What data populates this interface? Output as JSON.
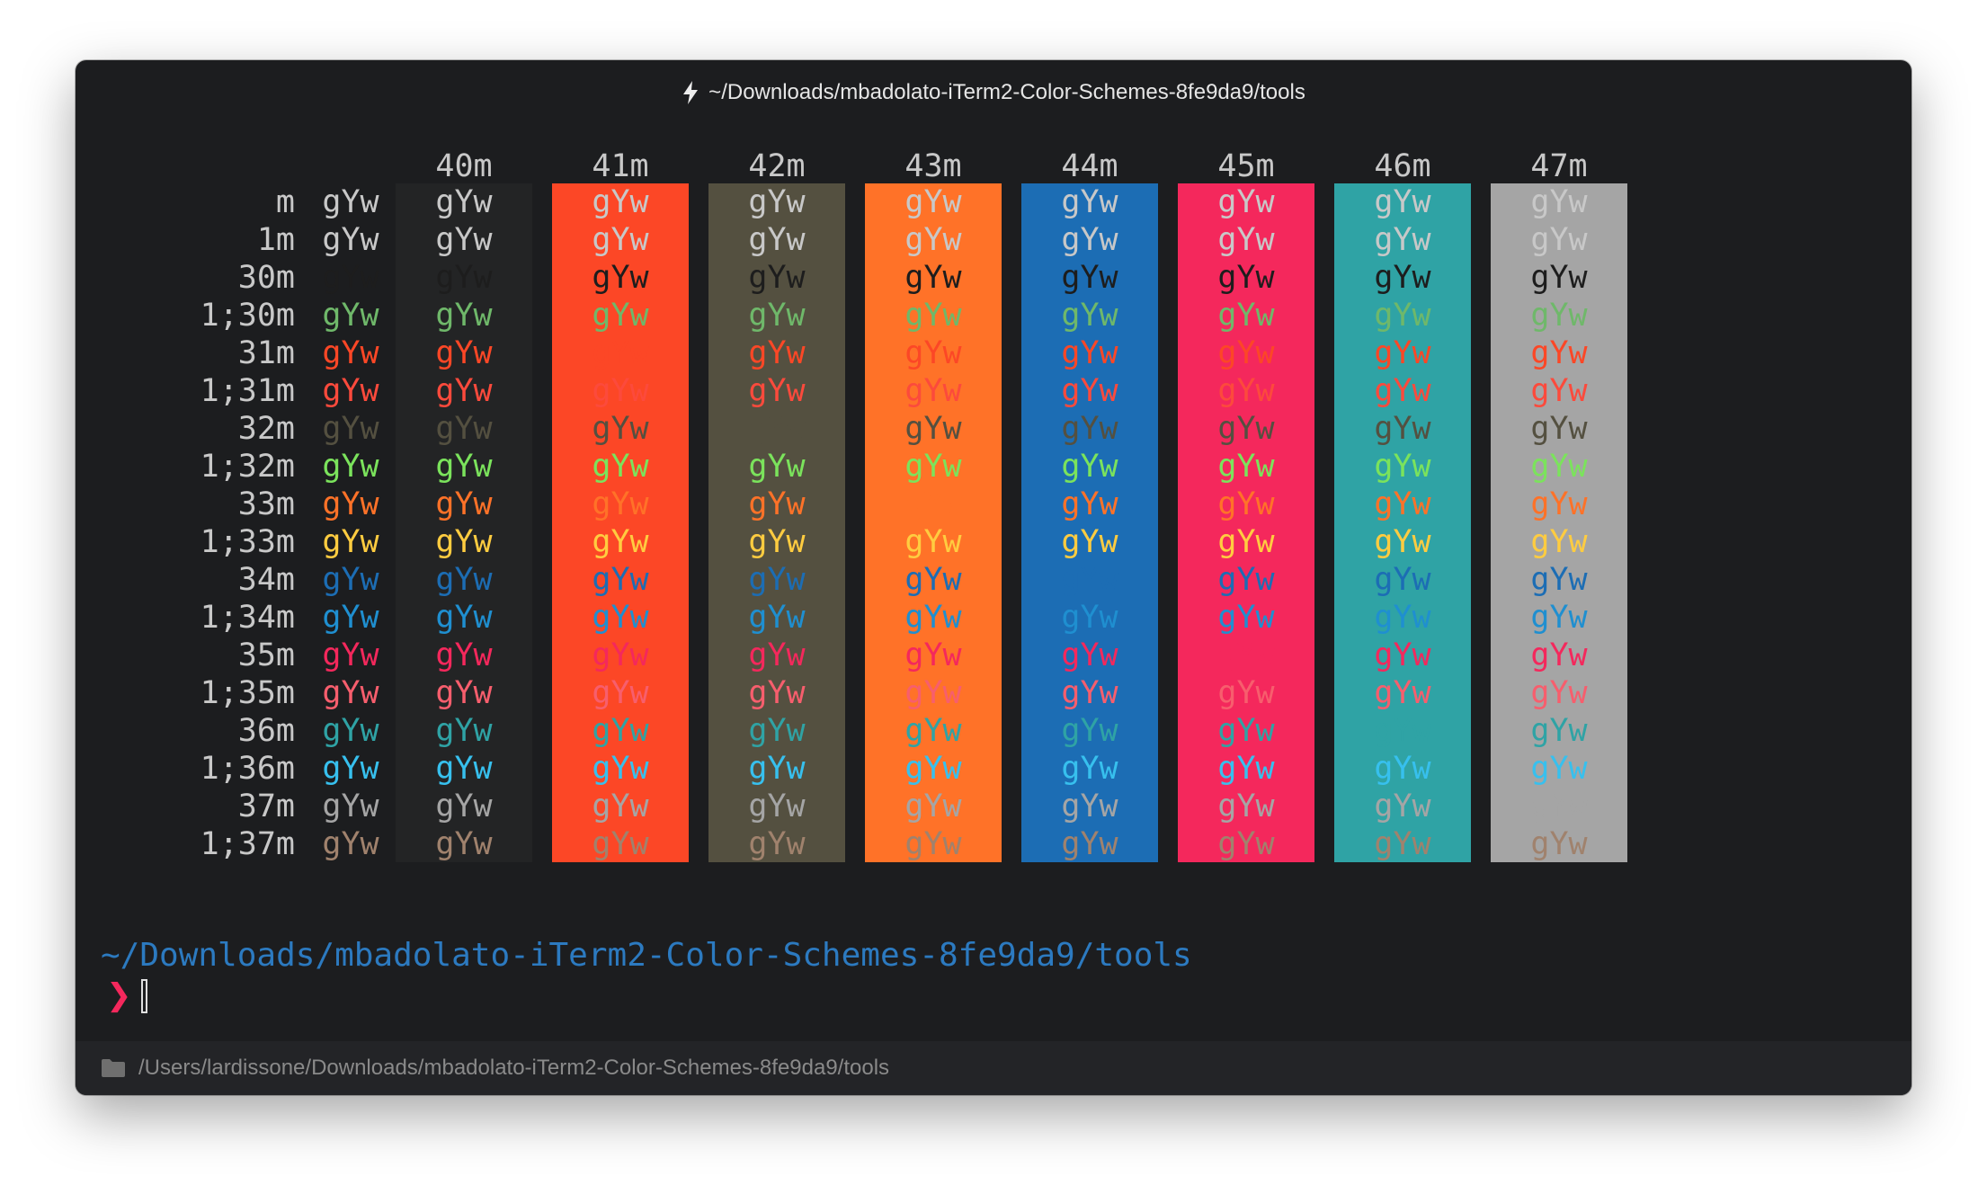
{
  "window": {
    "title": "~/Downloads/mbadolato-iTerm2-Color-Schemes-8fe9da9/tools",
    "title_icon": "lightning-bolt-icon",
    "background": "#1c1d1f"
  },
  "color_table": {
    "sample_text": "gYw",
    "background_headers": [
      "40m",
      "41m",
      "42m",
      "43m",
      "44m",
      "45m",
      "46m",
      "47m"
    ],
    "row_labels": [
      "m",
      "1m",
      "30m",
      "1;30m",
      "31m",
      "1;31m",
      "32m",
      "1;32m",
      "33m",
      "1;33m",
      "34m",
      "1;34m",
      "35m",
      "1;35m",
      "36m",
      "1;36m",
      "37m",
      "1;37m"
    ],
    "background_colors": [
      "#232425",
      "#fc4726",
      "#545040",
      "#ff7228",
      "#1c6db4",
      "#f4285c",
      "#2fa3a5",
      "#a5a5a5"
    ],
    "foreground_colors": [
      "#c8c8c8",
      "#c8c8c8",
      "#1d1d1d",
      "#6fb86a",
      "#fc4726",
      "#fc4a3c",
      "#545040",
      "#7be35c",
      "#ff7228",
      "#ffcc40",
      "#1c6db4",
      "#1f8fd0",
      "#f4285c",
      "#f75e6d",
      "#2fa3a5",
      "#37c0ee",
      "#a5a5a5",
      "#a0826d"
    ]
  },
  "terminal": {
    "cwd": "~/Downloads/mbadolato-iTerm2-Color-Schemes-8fe9da9/tools",
    "prompt_symbol": "❯",
    "path_color": "#2c7ac0",
    "prompt_color": "#f4285c"
  },
  "status_bar": {
    "icon": "folder-icon",
    "path": "/Users/lardissone/Downloads/mbadolato-iTerm2-Color-Schemes-8fe9da9/tools"
  }
}
